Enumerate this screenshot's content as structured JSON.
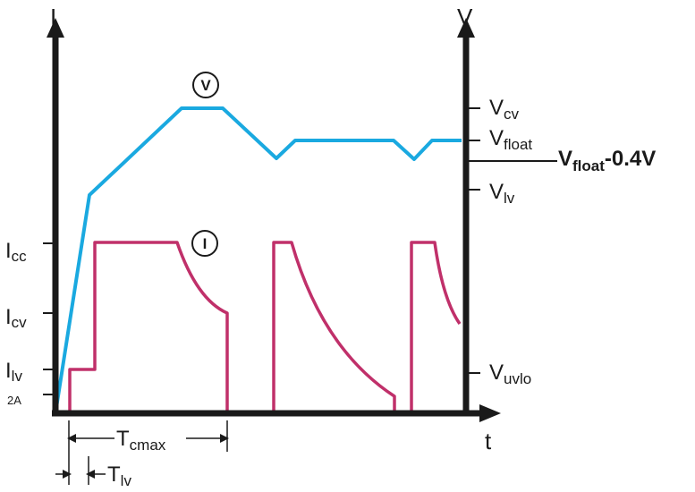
{
  "axes": {
    "left_label": "I",
    "right_label": "V",
    "time_label": "t"
  },
  "current_labels": {
    "icc": {
      "main": "I",
      "sub": "cc"
    },
    "icv": {
      "main": "I",
      "sub": "cv"
    },
    "ilv": {
      "main": "I",
      "sub": "lv"
    },
    "two_amp": "2A"
  },
  "voltage_labels": {
    "vcv": {
      "main": "V",
      "sub": "cv"
    },
    "vfloat": {
      "main": "V",
      "sub": "float"
    },
    "vfloat_minus": {
      "main": "V",
      "sub": "float",
      "suffix": "-0.4V"
    },
    "vlv": {
      "main": "V",
      "sub": "lv"
    },
    "vuvlo": {
      "main": "V",
      "sub": "uvlo"
    }
  },
  "curve_markers": {
    "voltage": "V",
    "current": "I"
  },
  "timing": {
    "tcmax": {
      "main": "T",
      "sub": "cmax"
    },
    "tlv": {
      "main": "T",
      "sub": "lv"
    }
  },
  "colors": {
    "axis": "#1a1a1a",
    "voltage_curve": "#1aa9e0",
    "current_curve": "#c0306a"
  }
}
